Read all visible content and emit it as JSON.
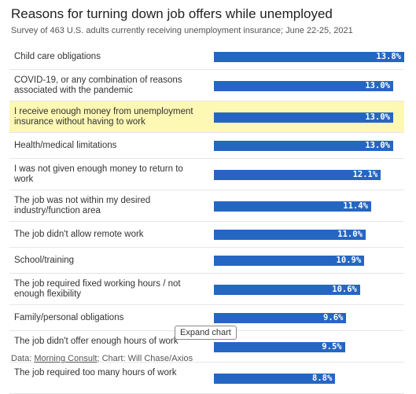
{
  "header": {
    "title": "Reasons for turning down job offers while unemployed",
    "subtitle": "Survey of 463 U.S. adults currently receiving unemployment insurance; June 22-25, 2021"
  },
  "chart_data": {
    "type": "bar",
    "orientation": "horizontal",
    "categories": [
      "Child care obligations",
      "COVID-19, or any combination of reasons associated with the pandemic",
      "I receive enough money from unemployment insurance without having to work",
      "Health/medical limitations",
      "I was not given enough money to return to work",
      "The job was not within my desired industry/function area",
      "The job didn't allow remote work",
      "School/training",
      "The job required fixed working hours / not enough flexibility",
      "Family/personal obligations",
      "The job didn't offer enough hours of work",
      "The job required too many hours of work"
    ],
    "values": [
      13.8,
      13.0,
      13.0,
      13.0,
      12.1,
      11.4,
      11.0,
      10.9,
      10.6,
      9.6,
      9.5,
      8.8
    ],
    "value_labels": [
      "13.8%",
      "13.0%",
      "13.0%",
      "13.0%",
      "12.1%",
      "11.4%",
      "11.0%",
      "10.9%",
      "10.6%",
      "9.6%",
      "9.5%",
      "8.8%"
    ],
    "highlighted_category": "I receive enough money from unemployment insurance without having to work",
    "xlim": [
      0,
      13.8
    ],
    "grid": false,
    "legend": "none",
    "colors": {
      "bar": "#2566c2",
      "highlight": "#fdf8b3",
      "value_text": "#ffffff"
    }
  },
  "tooltip": {
    "label": "Expand chart"
  },
  "footer": {
    "data_prefix": "Data: ",
    "data_source": "Morning Consult",
    "chart_credit": "; Chart: Will Chase/Axios"
  }
}
